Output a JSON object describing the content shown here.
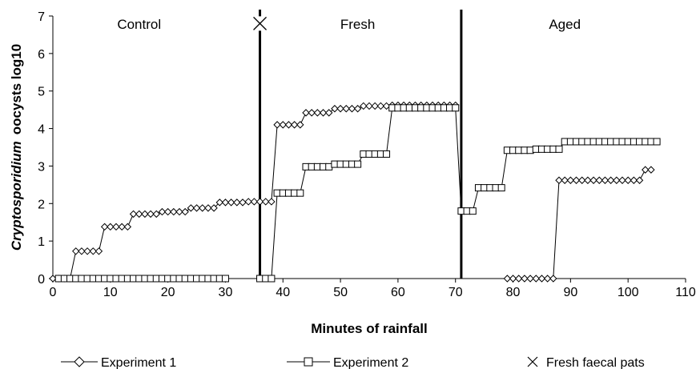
{
  "chart_data": {
    "type": "line",
    "xlabel": "Minutes of rainfall",
    "ylabel_italic": "Cryptosporidium",
    "ylabel_rest": "oocysts log10",
    "xlim": [
      0,
      110
    ],
    "ylim": [
      0,
      7
    ],
    "xticks": [
      0,
      10,
      20,
      30,
      40,
      50,
      60,
      70,
      80,
      90,
      100,
      110
    ],
    "yticks": [
      0,
      1,
      2,
      3,
      4,
      5,
      6,
      7
    ],
    "grid": false,
    "legend_position": "bottom",
    "regions": [
      {
        "label": "Control",
        "x": 15
      },
      {
        "label": "Fresh",
        "x": 53
      },
      {
        "label": "Aged",
        "x": 89
      }
    ],
    "vlines": [
      36,
      71
    ],
    "marker_point": {
      "name": "Fresh faecal pats",
      "x": 36,
      "y": 6.8
    },
    "series": [
      {
        "name": "Experiment 1",
        "marker": "diamond",
        "segments": [
          [
            [
              0,
              0
            ],
            [
              1,
              0
            ],
            [
              2,
              0
            ],
            [
              3,
              0
            ],
            [
              4,
              0.73
            ],
            [
              5,
              0.73
            ],
            [
              6,
              0.73
            ],
            [
              7,
              0.73
            ],
            [
              8,
              0.73
            ],
            [
              9,
              1.38
            ],
            [
              10,
              1.38
            ],
            [
              11,
              1.38
            ],
            [
              12,
              1.38
            ],
            [
              13,
              1.38
            ],
            [
              14,
              1.72
            ],
            [
              15,
              1.72
            ],
            [
              16,
              1.72
            ],
            [
              17,
              1.72
            ],
            [
              18,
              1.72
            ],
            [
              19,
              1.78
            ],
            [
              20,
              1.78
            ],
            [
              21,
              1.78
            ],
            [
              22,
              1.78
            ],
            [
              23,
              1.78
            ],
            [
              24,
              1.88
            ],
            [
              25,
              1.88
            ],
            [
              26,
              1.88
            ],
            [
              27,
              1.88
            ],
            [
              28,
              1.88
            ],
            [
              29,
              2.03
            ],
            [
              30,
              2.03
            ],
            [
              31,
              2.03
            ],
            [
              32,
              2.03
            ],
            [
              33,
              2.03
            ],
            [
              34,
              2.05
            ],
            [
              35,
              2.05
            ],
            [
              36,
              2.05
            ],
            [
              37,
              2.05
            ],
            [
              38,
              2.05
            ],
            [
              39,
              4.1
            ],
            [
              40,
              4.1
            ],
            [
              41,
              4.1
            ],
            [
              42,
              4.1
            ],
            [
              43,
              4.1
            ],
            [
              44,
              4.42
            ],
            [
              45,
              4.42
            ],
            [
              46,
              4.42
            ],
            [
              47,
              4.42
            ],
            [
              48,
              4.42
            ],
            [
              49,
              4.53
            ],
            [
              50,
              4.53
            ],
            [
              51,
              4.53
            ],
            [
              52,
              4.53
            ],
            [
              53,
              4.53
            ],
            [
              54,
              4.6
            ],
            [
              55,
              4.6
            ],
            [
              56,
              4.6
            ],
            [
              57,
              4.6
            ],
            [
              58,
              4.6
            ],
            [
              59,
              4.62
            ],
            [
              60,
              4.62
            ],
            [
              61,
              4.62
            ],
            [
              62,
              4.62
            ],
            [
              63,
              4.62
            ],
            [
              64,
              4.62
            ],
            [
              65,
              4.62
            ],
            [
              66,
              4.62
            ],
            [
              67,
              4.62
            ],
            [
              68,
              4.62
            ],
            [
              69,
              4.62
            ],
            [
              70,
              4.62
            ]
          ],
          [
            [
              79,
              0
            ],
            [
              80,
              0
            ],
            [
              81,
              0
            ],
            [
              82,
              0
            ],
            [
              83,
              0
            ],
            [
              84,
              0
            ],
            [
              85,
              0
            ],
            [
              86,
              0
            ],
            [
              87,
              0
            ],
            [
              88,
              2.62
            ],
            [
              89,
              2.62
            ],
            [
              90,
              2.62
            ],
            [
              91,
              2.62
            ],
            [
              92,
              2.62
            ],
            [
              93,
              2.62
            ],
            [
              94,
              2.62
            ],
            [
              95,
              2.62
            ],
            [
              96,
              2.62
            ],
            [
              97,
              2.62
            ],
            [
              98,
              2.62
            ],
            [
              99,
              2.62
            ],
            [
              100,
              2.62
            ],
            [
              101,
              2.62
            ],
            [
              102,
              2.62
            ],
            [
              103,
              2.9
            ],
            [
              104,
              2.9
            ]
          ]
        ]
      },
      {
        "name": "Experiment 2",
        "marker": "square",
        "segments": [
          [
            [
              1,
              0
            ],
            [
              2,
              0
            ],
            [
              3,
              0
            ],
            [
              4,
              0
            ],
            [
              5,
              0
            ],
            [
              6,
              0
            ],
            [
              7,
              0
            ],
            [
              8,
              0
            ],
            [
              9,
              0
            ],
            [
              10,
              0
            ],
            [
              11,
              0
            ],
            [
              12,
              0
            ],
            [
              13,
              0
            ],
            [
              14,
              0
            ],
            [
              15,
              0
            ],
            [
              16,
              0
            ],
            [
              17,
              0
            ],
            [
              18,
              0
            ],
            [
              19,
              0
            ],
            [
              20,
              0
            ],
            [
              21,
              0
            ],
            [
              22,
              0
            ],
            [
              23,
              0
            ],
            [
              24,
              0
            ],
            [
              25,
              0
            ],
            [
              26,
              0
            ],
            [
              27,
              0
            ],
            [
              28,
              0
            ],
            [
              29,
              0
            ],
            [
              30,
              0
            ]
          ],
          [
            [
              36,
              0
            ],
            [
              37,
              0
            ],
            [
              38,
              0
            ],
            [
              39,
              2.28
            ],
            [
              40,
              2.28
            ],
            [
              41,
              2.28
            ],
            [
              42,
              2.28
            ],
            [
              43,
              2.28
            ],
            [
              44,
              2.98
            ],
            [
              45,
              2.98
            ],
            [
              46,
              2.98
            ],
            [
              47,
              2.98
            ],
            [
              48,
              2.98
            ],
            [
              49,
              3.05
            ],
            [
              50,
              3.05
            ],
            [
              51,
              3.05
            ],
            [
              52,
              3.05
            ],
            [
              53,
              3.05
            ],
            [
              54,
              3.32
            ],
            [
              55,
              3.32
            ],
            [
              56,
              3.32
            ],
            [
              57,
              3.32
            ],
            [
              58,
              3.32
            ],
            [
              59,
              4.55
            ],
            [
              60,
              4.55
            ],
            [
              61,
              4.55
            ],
            [
              62,
              4.55
            ],
            [
              63,
              4.55
            ],
            [
              64,
              4.55
            ],
            [
              65,
              4.55
            ],
            [
              66,
              4.55
            ],
            [
              67,
              4.55
            ],
            [
              68,
              4.55
            ],
            [
              69,
              4.55
            ],
            [
              70,
              4.55
            ],
            [
              71,
              1.8
            ],
            [
              72,
              1.8
            ],
            [
              73,
              1.8
            ],
            [
              74,
              2.42
            ],
            [
              75,
              2.42
            ],
            [
              76,
              2.42
            ],
            [
              77,
              2.42
            ],
            [
              78,
              2.42
            ],
            [
              79,
              3.42
            ],
            [
              80,
              3.42
            ],
            [
              81,
              3.42
            ],
            [
              82,
              3.42
            ],
            [
              83,
              3.42
            ],
            [
              84,
              3.45
            ],
            [
              85,
              3.45
            ],
            [
              86,
              3.45
            ],
            [
              87,
              3.45
            ],
            [
              88,
              3.45
            ],
            [
              89,
              3.65
            ],
            [
              90,
              3.65
            ],
            [
              91,
              3.65
            ],
            [
              92,
              3.65
            ],
            [
              93,
              3.65
            ],
            [
              94,
              3.65
            ],
            [
              95,
              3.65
            ],
            [
              96,
              3.65
            ],
            [
              97,
              3.65
            ],
            [
              98,
              3.65
            ],
            [
              99,
              3.65
            ],
            [
              100,
              3.65
            ],
            [
              101,
              3.65
            ],
            [
              102,
              3.65
            ],
            [
              103,
              3.65
            ],
            [
              104,
              3.65
            ],
            [
              105,
              3.65
            ]
          ]
        ]
      }
    ]
  }
}
